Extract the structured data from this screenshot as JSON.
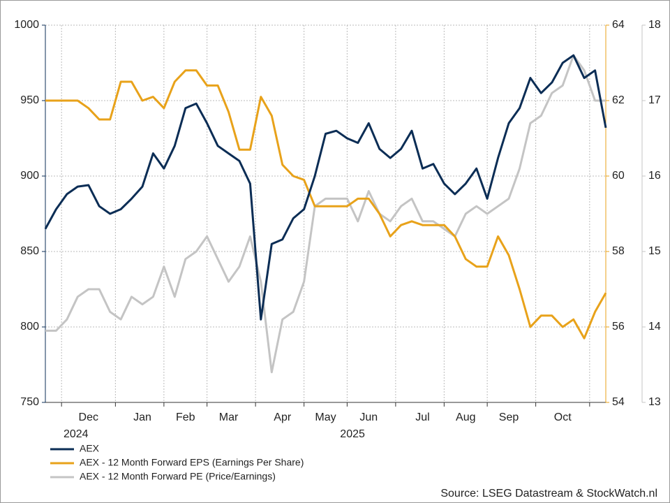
{
  "chart_data": {
    "type": "line",
    "categories": [
      null,
      null,
      null,
      null,
      "Dec",
      null,
      null,
      null,
      null,
      "Jan",
      null,
      null,
      null,
      "Feb",
      null,
      null,
      null,
      "Mar",
      null,
      null,
      null,
      null,
      "Apr",
      null,
      null,
      null,
      "May",
      null,
      null,
      null,
      "Jun",
      null,
      null,
      null,
      null,
      "Jul",
      null,
      null,
      null,
      "Aug",
      null,
      null,
      null,
      "Sep",
      null,
      null,
      null,
      null,
      "Oct",
      null,
      null,
      null,
      null
    ],
    "year_labels": [
      "2024",
      "2025"
    ],
    "series": [
      {
        "name": "AEX",
        "color": "#0b2d55",
        "axis": "y",
        "values": [
          865,
          878,
          888,
          893,
          894,
          880,
          875,
          878,
          885,
          893,
          915,
          905,
          920,
          945,
          948,
          935,
          920,
          915,
          910,
          895,
          805,
          855,
          858,
          872,
          878,
          900,
          928,
          930,
          925,
          922,
          935,
          918,
          912,
          918,
          930,
          905,
          908,
          895,
          888,
          895,
          905,
          885,
          912,
          935,
          945,
          965,
          955,
          962,
          975,
          980,
          965,
          970,
          932
        ]
      },
      {
        "name": "AEX - 12 Month Forward EPS (Earnings Per Share)",
        "color": "#e8a21a",
        "axis": "y2",
        "values": [
          62.0,
          62.0,
          62.0,
          62.0,
          61.8,
          61.5,
          61.5,
          62.5,
          62.5,
          62.0,
          62.1,
          61.8,
          62.5,
          62.8,
          62.8,
          62.4,
          62.4,
          61.7,
          60.7,
          60.7,
          62.1,
          61.6,
          60.3,
          60.0,
          59.9,
          59.2,
          59.2,
          59.2,
          59.2,
          59.4,
          59.4,
          59.0,
          58.4,
          58.7,
          58.8,
          58.7,
          58.7,
          58.7,
          58.4,
          57.8,
          57.6,
          57.6,
          58.4,
          57.9,
          57.0,
          56.0,
          56.3,
          56.3,
          56.0,
          56.2,
          55.7,
          56.4,
          56.9
        ]
      },
      {
        "name": "AEX - 12 Month Forward PE (Price/Earnings)",
        "color": "#c4c4c4",
        "axis": "y3",
        "values": [
          13.95,
          13.95,
          14.1,
          14.4,
          14.5,
          14.5,
          14.2,
          14.1,
          14.4,
          14.3,
          14.4,
          14.8,
          14.4,
          14.9,
          15.0,
          15.2,
          14.9,
          14.6,
          14.8,
          15.2,
          14.6,
          13.4,
          14.1,
          14.2,
          14.6,
          15.6,
          15.7,
          15.7,
          15.7,
          15.4,
          15.8,
          15.5,
          15.4,
          15.6,
          15.7,
          15.4,
          15.4,
          15.3,
          15.2,
          15.5,
          15.6,
          15.5,
          15.6,
          15.7,
          16.1,
          16.7,
          16.8,
          17.1,
          17.2,
          17.6,
          17.4,
          17.0,
          17.0
        ]
      }
    ],
    "ylim": [
      750,
      1000
    ],
    "yticks": [
      750,
      800,
      850,
      900,
      950,
      1000
    ],
    "y2lim": [
      54,
      64
    ],
    "y2ticks": [
      54,
      56,
      58,
      60,
      62,
      64
    ],
    "y3lim": [
      13,
      18
    ],
    "y3ticks": [
      13,
      14,
      15,
      16,
      17,
      18
    ],
    "grid": true,
    "source": "Source: LSEG Datastream & StockWatch.nl"
  }
}
